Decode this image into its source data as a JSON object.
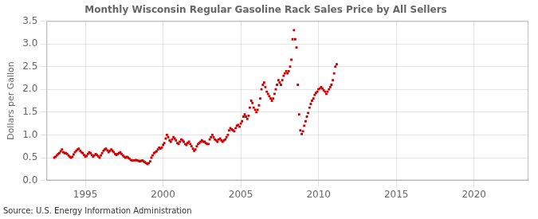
{
  "chart_data": {
    "type": "scatter",
    "title": "Monthly Wisconsin Regular Gasoline Rack Sales Price by All Sellers",
    "y_label": "Dollars per Gallon",
    "annotations": [
      "Source: U.S. Energy Information Administration"
    ],
    "xlim": [
      1992.5,
      2023.5
    ],
    "ylim": [
      0.0,
      3.5
    ],
    "xticks": [
      1995,
      2000,
      2005,
      2010,
      2015,
      2020
    ],
    "yticks": [
      {
        "value": 0,
        "label": "0.0"
      },
      0.5,
      {
        "value": 1,
        "label": "1.0"
      },
      1.5,
      {
        "value": 2,
        "label": "2.0"
      },
      2.5,
      {
        "value": 3,
        "label": "3.0"
      },
      3.5
    ],
    "grid": true,
    "color": "#cc0000",
    "marker": "square",
    "x": [
      1993.0,
      1993.08,
      1993.17,
      1993.25,
      1993.33,
      1993.42,
      1993.5,
      1993.58,
      1993.67,
      1993.75,
      1993.83,
      1993.92,
      1994.0,
      1994.08,
      1994.17,
      1994.25,
      1994.33,
      1994.42,
      1994.5,
      1994.58,
      1994.67,
      1994.75,
      1994.83,
      1994.92,
      1995.0,
      1995.08,
      1995.17,
      1995.25,
      1995.33,
      1995.42,
      1995.5,
      1995.58,
      1995.67,
      1995.75,
      1995.83,
      1995.92,
      1996.0,
      1996.08,
      1996.17,
      1996.25,
      1996.33,
      1996.42,
      1996.5,
      1996.58,
      1996.67,
      1996.75,
      1996.83,
      1996.92,
      1997.0,
      1997.08,
      1997.17,
      1997.25,
      1997.33,
      1997.42,
      1997.5,
      1997.58,
      1997.67,
      1997.75,
      1997.83,
      1997.92,
      1998.0,
      1998.08,
      1998.17,
      1998.25,
      1998.33,
      1998.42,
      1998.5,
      1998.58,
      1998.67,
      1998.75,
      1998.83,
      1998.92,
      1999.0,
      1999.08,
      1999.17,
      1999.25,
      1999.33,
      1999.42,
      1999.5,
      1999.58,
      1999.67,
      1999.75,
      1999.83,
      1999.92,
      2000.0,
      2000.08,
      2000.17,
      2000.25,
      2000.33,
      2000.42,
      2000.5,
      2000.58,
      2000.67,
      2000.75,
      2000.83,
      2000.92,
      2001.0,
      2001.08,
      2001.17,
      2001.25,
      2001.33,
      2001.42,
      2001.5,
      2001.58,
      2001.67,
      2001.75,
      2001.83,
      2001.92,
      2002.0,
      2002.08,
      2002.17,
      2002.25,
      2002.33,
      2002.42,
      2002.5,
      2002.58,
      2002.67,
      2002.75,
      2002.83,
      2002.92,
      2003.0,
      2003.08,
      2003.17,
      2003.25,
      2003.33,
      2003.42,
      2003.5,
      2003.58,
      2003.67,
      2003.75,
      2003.83,
      2003.92,
      2004.0,
      2004.08,
      2004.17,
      2004.25,
      2004.33,
      2004.42,
      2004.5,
      2004.58,
      2004.67,
      2004.75,
      2004.83,
      2004.92,
      2005.0,
      2005.08,
      2005.17,
      2005.25,
      2005.33,
      2005.42,
      2005.5,
      2005.58,
      2005.67,
      2005.75,
      2005.83,
      2005.92,
      2006.0,
      2006.08,
      2006.17,
      2006.25,
      2006.33,
      2006.42,
      2006.5,
      2006.58,
      2006.67,
      2006.75,
      2006.83,
      2006.92,
      2007.0,
      2007.08,
      2007.17,
      2007.25,
      2007.33,
      2007.42,
      2007.5,
      2007.58,
      2007.67,
      2007.75,
      2007.83,
      2007.92,
      2008.0,
      2008.08,
      2008.17,
      2008.25,
      2008.33,
      2008.42,
      2008.5,
      2008.58,
      2008.67,
      2008.75,
      2008.83,
      2008.92,
      2009.0,
      2009.08,
      2009.17,
      2009.25,
      2009.33,
      2009.42,
      2009.5,
      2009.58,
      2009.67,
      2009.75,
      2009.83,
      2009.92,
      2010.0,
      2010.08,
      2010.17,
      2010.25,
      2010.33,
      2010.42,
      2010.5,
      2010.58,
      2010.67,
      2010.75,
      2010.83,
      2010.92,
      2011.0,
      2011.08,
      2011.17
    ],
    "values": [
      0.5,
      0.52,
      0.55,
      0.58,
      0.6,
      0.64,
      0.68,
      0.62,
      0.6,
      0.6,
      0.58,
      0.55,
      0.52,
      0.5,
      0.52,
      0.57,
      0.62,
      0.65,
      0.68,
      0.7,
      0.65,
      0.62,
      0.6,
      0.56,
      0.52,
      0.54,
      0.58,
      0.62,
      0.6,
      0.56,
      0.52,
      0.55,
      0.58,
      0.56,
      0.53,
      0.5,
      0.55,
      0.6,
      0.65,
      0.68,
      0.7,
      0.66,
      0.62,
      0.65,
      0.68,
      0.65,
      0.62,
      0.58,
      0.56,
      0.58,
      0.6,
      0.62,
      0.58,
      0.55,
      0.52,
      0.5,
      0.52,
      0.5,
      0.48,
      0.45,
      0.44,
      0.44,
      0.44,
      0.45,
      0.44,
      0.43,
      0.42,
      0.43,
      0.44,
      0.42,
      0.4,
      0.38,
      0.36,
      0.38,
      0.42,
      0.5,
      0.55,
      0.6,
      0.62,
      0.64,
      0.68,
      0.72,
      0.7,
      0.72,
      0.78,
      0.82,
      0.92,
      1.0,
      0.95,
      0.88,
      0.85,
      0.9,
      0.95,
      0.92,
      0.88,
      0.82,
      0.8,
      0.85,
      0.9,
      0.88,
      0.85,
      0.8,
      0.78,
      0.82,
      0.85,
      0.8,
      0.75,
      0.7,
      0.65,
      0.68,
      0.75,
      0.8,
      0.82,
      0.85,
      0.88,
      0.85,
      0.85,
      0.82,
      0.8,
      0.8,
      0.9,
      0.95,
      1.0,
      0.95,
      0.9,
      0.88,
      0.85,
      0.9,
      0.92,
      0.88,
      0.85,
      0.88,
      0.9,
      0.95,
      1.0,
      1.1,
      1.15,
      1.12,
      1.1,
      1.08,
      1.15,
      1.2,
      1.22,
      1.18,
      1.25,
      1.3,
      1.4,
      1.45,
      1.4,
      1.35,
      1.42,
      1.6,
      1.75,
      1.7,
      1.6,
      1.55,
      1.5,
      1.55,
      1.65,
      1.8,
      2.0,
      2.1,
      2.15,
      2.05,
      1.95,
      1.9,
      1.85,
      1.8,
      1.75,
      1.8,
      1.9,
      2.0,
      2.1,
      2.2,
      2.15,
      2.1,
      2.2,
      2.3,
      2.35,
      2.4,
      2.35,
      2.4,
      2.5,
      2.65,
      3.1,
      3.3,
      3.1,
      2.92,
      2.1,
      1.45,
      1.1,
      1.02,
      1.08,
      1.2,
      1.3,
      1.4,
      1.48,
      1.6,
      1.68,
      1.75,
      1.8,
      1.88,
      1.92,
      1.95,
      2.0,
      2.02,
      2.05,
      2.02,
      1.98,
      1.95,
      1.9,
      1.95,
      2.0,
      2.05,
      2.1,
      2.2,
      2.35,
      2.5,
      2.55
    ]
  }
}
